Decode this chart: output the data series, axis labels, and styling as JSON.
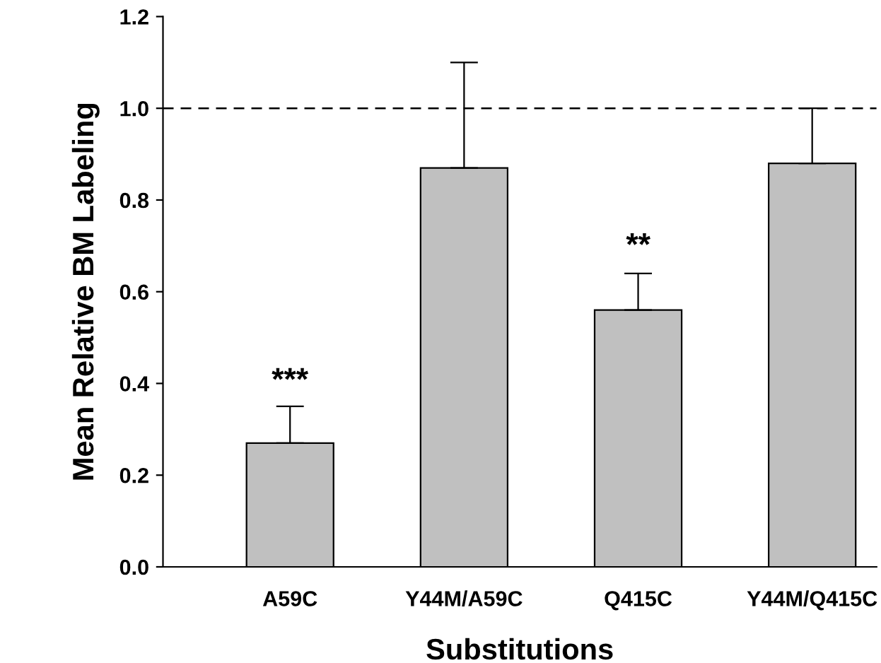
{
  "chart_data": {
    "type": "bar",
    "xlabel": "Substitutions",
    "ylabel": "Mean Relative BM Labeling",
    "categories": [
      "A59C",
      "Y44M/A59C",
      "Q415C",
      "Y44M/Q415C"
    ],
    "values": [
      0.27,
      0.87,
      0.56,
      0.88
    ],
    "errors": [
      [
        0.27,
        0.35
      ],
      [
        0.87,
        1.1
      ],
      [
        0.56,
        0.64
      ],
      [
        0.88,
        1.0
      ]
    ],
    "color": "#c0c0c0",
    "ylim": [
      0,
      1.2
    ],
    "yticks": [
      {
        "value": 0,
        "label": "0.0"
      },
      {
        "value": 0.2,
        "label": "0.2"
      },
      {
        "value": 0.4,
        "label": "0.4"
      },
      {
        "value": 0.6,
        "label": "0.6"
      },
      {
        "value": 0.8,
        "label": "0.8"
      },
      {
        "value": 1.0,
        "label": "1.0"
      },
      {
        "value": 1.2,
        "label": "1.2"
      }
    ],
    "ref_lines": [
      {
        "axis": "y",
        "value": 1.0,
        "line_style": "dashed",
        "color": "#000000"
      }
    ],
    "annotations": [
      "***",
      "**"
    ],
    "grid": false,
    "legend": false
  }
}
